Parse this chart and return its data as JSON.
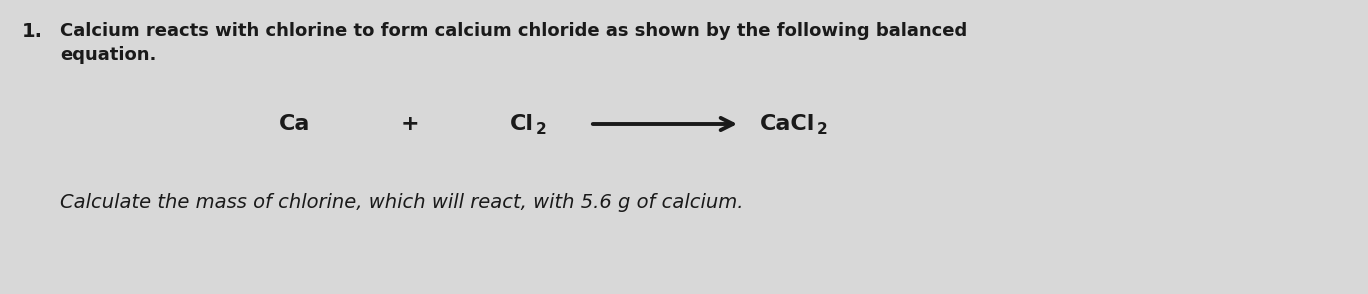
{
  "background_color": "#d8d8d8",
  "number": "1.",
  "line1": "Calcium reacts with chlorine to form calcium chloride as shown by the following balanced",
  "line2": "equation.",
  "equation_ca": "Ca",
  "equation_plus": "+",
  "equation_cl2_main": "Cl",
  "equation_cl2_sub": "2",
  "equation_cacl2_main": "CaCl",
  "equation_cacl2_sub": "2",
  "question_line": "Calculate the mass of chlorine, which will react, with 5.6 g of calcium.",
  "text_color": "#1a1a1a",
  "font_size_number": 14,
  "font_size_body": 13,
  "font_size_equation": 16,
  "font_size_sub": 11,
  "font_size_question": 14
}
